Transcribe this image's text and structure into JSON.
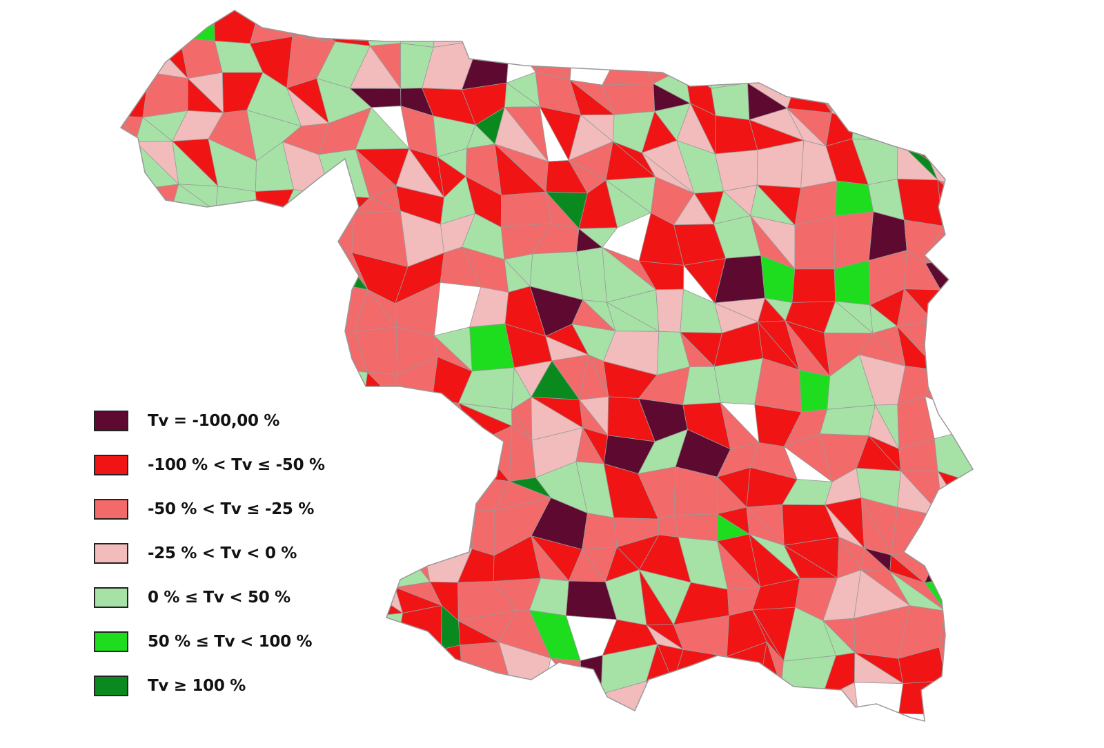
{
  "legend": {
    "items": [
      {
        "label": "Tv = -100,00 %",
        "color": "#5e0a30"
      },
      {
        "label": "-100 % < Tv ≤ -50 %",
        "color": "#f01414"
      },
      {
        "label": "-50 % < Tv ≤ -25 %",
        "color": "#f26a6a"
      },
      {
        "label": "-25 % < Tv < 0 %",
        "color": "#f2bcbc"
      },
      {
        "label": "0 % ≤ Tv < 50 %",
        "color": "#a6e2a6"
      },
      {
        "label": "50 % ≤ Tv < 100 %",
        "color": "#1edc1e"
      },
      {
        "label": "Tv ≥ 100 %",
        "color": "#0a8a1e"
      }
    ],
    "no_data_color": "#ffffff"
  }
}
